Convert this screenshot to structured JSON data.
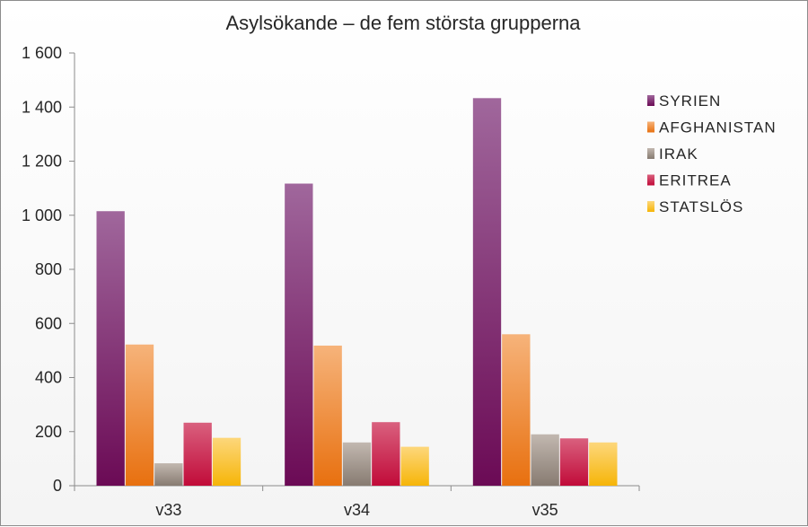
{
  "chart_data": {
    "type": "bar",
    "title": "Asylsökande – de fem största grupperna",
    "xlabel": "",
    "ylabel": "",
    "categories": [
      "v33",
      "v34",
      "v35"
    ],
    "ylim": [
      0,
      1600
    ],
    "yticks": [
      0,
      200,
      400,
      600,
      800,
      1000,
      1200,
      1400,
      1600
    ],
    "ytick_labels": [
      "0",
      "200",
      "400",
      "600",
      "800",
      "1 000",
      "1 200",
      "1 400",
      "1 600"
    ],
    "grid": false,
    "legend_position": "right",
    "series": [
      {
        "name": "SYRIEN",
        "values": [
          1015,
          1117,
          1433
        ],
        "color_top": "#a0679c",
        "color_bottom": "#6b0a55"
      },
      {
        "name": "AFGHANISTAN",
        "values": [
          522,
          518,
          560
        ],
        "color_top": "#f6b37a",
        "color_bottom": "#e8700f"
      },
      {
        "name": "IRAK",
        "values": [
          83,
          160,
          190
        ],
        "color_top": "#c2b8b0",
        "color_bottom": "#877b71"
      },
      {
        "name": "ERITREA",
        "values": [
          233,
          235,
          175
        ],
        "color_top": "#d9607e",
        "color_bottom": "#c10b39"
      },
      {
        "name": "STATSLÖS",
        "values": [
          177,
          144,
          160
        ],
        "color_top": "#fdd77b",
        "color_bottom": "#f6b508"
      }
    ]
  }
}
